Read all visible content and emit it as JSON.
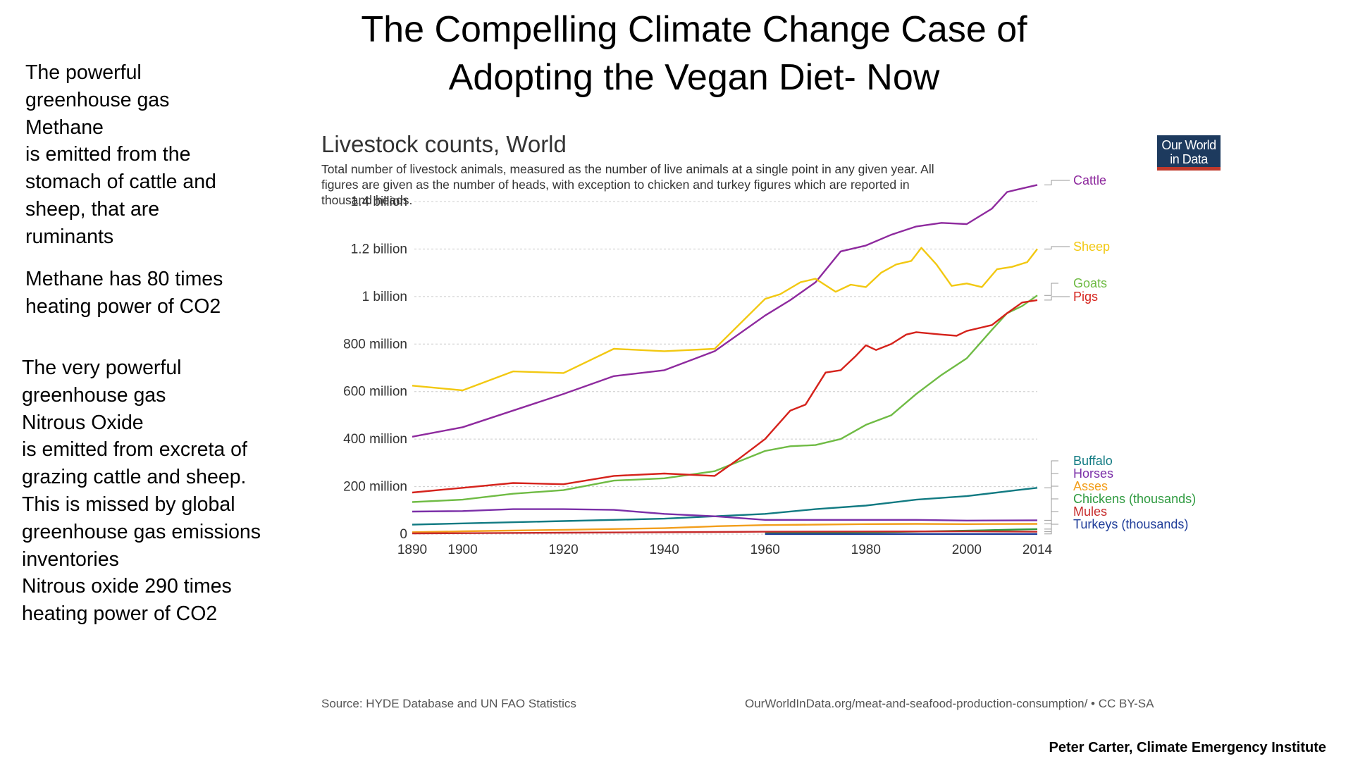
{
  "slide": {
    "title_line1": "The Compelling Climate Change Case of",
    "title_line2": "Adopting the Vegan Diet- Now",
    "methane_note": "The powerful\ngreenhouse gas\nMethane\nis emitted from the\nstomach of cattle and\nsheep, that are\nruminants",
    "methane_power": "Methane has 80 times\nheating  power of CO2",
    "nitrous_note": "The very powerful\ngreenhouse gas\nNitrous Oxide\nis emitted from excreta of\ngrazing cattle and sheep.\nThis is missed by global\ngreenhouse gas emissions\ninventories\nNitrous oxide 290 times\nheating  power of CO2",
    "credit": "Peter Carter, Climate Emergency Institute"
  },
  "logo": {
    "line1": "Our World",
    "line2": "in Data",
    "color": "#1d3a5e",
    "accent": "#c0392b"
  },
  "chart_data": {
    "type": "line",
    "title": "Livestock counts, World",
    "subtitle_lines": [
      "Total number of livestock animals, measured as the number of live animals at a single point in any given year. All",
      "figures are given as the number of heads, with exception to chicken and turkey figures which are reported in",
      "thousand heads."
    ],
    "source": "Source: HYDE Database and UN FAO Statistics",
    "url": "OurWorldInData.org/meat-and-seafood-production-consumption/ • CC BY-SA",
    "xlim": [
      1890,
      2014
    ],
    "ylim": [
      0,
      1500000000
    ],
    "x_ticks": [
      {
        "value": 1890,
        "label": "1890"
      },
      {
        "value": 1900,
        "label": "1900"
      },
      {
        "value": 1920,
        "label": "1920"
      },
      {
        "value": 1940,
        "label": "1940"
      },
      {
        "value": 1960,
        "label": "1960"
      },
      {
        "value": 1980,
        "label": "1980"
      },
      {
        "value": 2000,
        "label": "2000"
      },
      {
        "value": 2014,
        "label": "2014"
      }
    ],
    "y_ticks": [
      {
        "value": 0,
        "label": "0"
      },
      {
        "value": 200000000,
        "label": "200 million"
      },
      {
        "value": 400000000,
        "label": "400 million"
      },
      {
        "value": 600000000,
        "label": "600 million"
      },
      {
        "value": 800000000,
        "label": "800 million"
      },
      {
        "value": 1000000000,
        "label": "1 billion"
      },
      {
        "value": 1200000000,
        "label": "1.2 billion"
      },
      {
        "value": 1400000000,
        "label": "1.4 billion"
      }
    ],
    "grid": true,
    "legend": "right-end labels",
    "series": [
      {
        "name": "Cattle",
        "color": "#8e2a9e",
        "points": [
          [
            1890,
            410000000
          ],
          [
            1900,
            450000000
          ],
          [
            1910,
            520000000
          ],
          [
            1920,
            590000000
          ],
          [
            1930,
            665000000
          ],
          [
            1940,
            690000000
          ],
          [
            1950,
            770000000
          ],
          [
            1960,
            920000000
          ],
          [
            1965,
            985000000
          ],
          [
            1970,
            1060000000
          ],
          [
            1975,
            1190000000
          ],
          [
            1980,
            1215000000
          ],
          [
            1985,
            1260000000
          ],
          [
            1990,
            1295000000
          ],
          [
            1995,
            1310000000
          ],
          [
            2000,
            1305000000
          ],
          [
            2005,
            1370000000
          ],
          [
            2008,
            1440000000
          ],
          [
            2010,
            1450000000
          ],
          [
            2014,
            1470000000
          ]
        ]
      },
      {
        "name": "Sheep",
        "color": "#f2c811",
        "points": [
          [
            1890,
            625000000
          ],
          [
            1900,
            605000000
          ],
          [
            1910,
            685000000
          ],
          [
            1920,
            678000000
          ],
          [
            1930,
            780000000
          ],
          [
            1940,
            770000000
          ],
          [
            1950,
            780000000
          ],
          [
            1960,
            990000000
          ],
          [
            1963,
            1010000000
          ],
          [
            1967,
            1060000000
          ],
          [
            1970,
            1075000000
          ],
          [
            1974,
            1020000000
          ],
          [
            1977,
            1050000000
          ],
          [
            1980,
            1040000000
          ],
          [
            1983,
            1100000000
          ],
          [
            1986,
            1135000000
          ],
          [
            1989,
            1150000000
          ],
          [
            1991,
            1205000000
          ],
          [
            1994,
            1135000000
          ],
          [
            1997,
            1045000000
          ],
          [
            2000,
            1055000000
          ],
          [
            2003,
            1040000000
          ],
          [
            2006,
            1115000000
          ],
          [
            2009,
            1125000000
          ],
          [
            2012,
            1145000000
          ],
          [
            2014,
            1200000000
          ]
        ]
      },
      {
        "name": "Goats",
        "color": "#6fbb44",
        "points": [
          [
            1890,
            135000000
          ],
          [
            1900,
            145000000
          ],
          [
            1910,
            170000000
          ],
          [
            1920,
            185000000
          ],
          [
            1930,
            225000000
          ],
          [
            1940,
            235000000
          ],
          [
            1950,
            265000000
          ],
          [
            1960,
            350000000
          ],
          [
            1965,
            370000000
          ],
          [
            1970,
            375000000
          ],
          [
            1975,
            400000000
          ],
          [
            1980,
            460000000
          ],
          [
            1985,
            500000000
          ],
          [
            1990,
            590000000
          ],
          [
            1995,
            670000000
          ],
          [
            2000,
            740000000
          ],
          [
            2005,
            860000000
          ],
          [
            2008,
            930000000
          ],
          [
            2011,
            960000000
          ],
          [
            2014,
            1005000000
          ]
        ]
      },
      {
        "name": "Pigs",
        "color": "#d5221b",
        "points": [
          [
            1890,
            175000000
          ],
          [
            1900,
            195000000
          ],
          [
            1910,
            215000000
          ],
          [
            1920,
            210000000
          ],
          [
            1930,
            245000000
          ],
          [
            1940,
            255000000
          ],
          [
            1950,
            245000000
          ],
          [
            1955,
            320000000
          ],
          [
            1960,
            400000000
          ],
          [
            1965,
            520000000
          ],
          [
            1968,
            545000000
          ],
          [
            1972,
            680000000
          ],
          [
            1975,
            690000000
          ],
          [
            1978,
            750000000
          ],
          [
            1980,
            795000000
          ],
          [
            1982,
            775000000
          ],
          [
            1985,
            800000000
          ],
          [
            1988,
            840000000
          ],
          [
            1990,
            850000000
          ],
          [
            1995,
            840000000
          ],
          [
            1998,
            835000000
          ],
          [
            2000,
            855000000
          ],
          [
            2005,
            880000000
          ],
          [
            2008,
            930000000
          ],
          [
            2011,
            975000000
          ],
          [
            2014,
            985000000
          ]
        ]
      },
      {
        "name": "Buffalo",
        "color": "#117a82",
        "points": [
          [
            1890,
            40000000
          ],
          [
            1900,
            45000000
          ],
          [
            1920,
            55000000
          ],
          [
            1940,
            65000000
          ],
          [
            1950,
            75000000
          ],
          [
            1960,
            85000000
          ],
          [
            1970,
            105000000
          ],
          [
            1980,
            120000000
          ],
          [
            1990,
            145000000
          ],
          [
            2000,
            160000000
          ],
          [
            2010,
            185000000
          ],
          [
            2014,
            195000000
          ]
        ]
      },
      {
        "name": "Horses",
        "color": "#7b2fa8",
        "points": [
          [
            1890,
            95000000
          ],
          [
            1900,
            97000000
          ],
          [
            1910,
            105000000
          ],
          [
            1920,
            105000000
          ],
          [
            1930,
            102000000
          ],
          [
            1940,
            85000000
          ],
          [
            1950,
            75000000
          ],
          [
            1960,
            60000000
          ],
          [
            1970,
            60000000
          ],
          [
            1980,
            60000000
          ],
          [
            1990,
            60000000
          ],
          [
            2000,
            57000000
          ],
          [
            2014,
            58000000
          ]
        ]
      },
      {
        "name": "Asses",
        "color": "#f29e1b",
        "points": [
          [
            1890,
            8000000
          ],
          [
            1900,
            12000000
          ],
          [
            1920,
            18000000
          ],
          [
            1940,
            25000000
          ],
          [
            1950,
            33000000
          ],
          [
            1960,
            38000000
          ],
          [
            1970,
            40000000
          ],
          [
            1980,
            42000000
          ],
          [
            1990,
            43000000
          ],
          [
            2000,
            42000000
          ],
          [
            2014,
            43000000
          ]
        ]
      },
      {
        "name": "Chickens (thousands)",
        "color": "#2e9a3f",
        "points": [
          [
            1960,
            3800000
          ],
          [
            1970,
            5200000
          ],
          [
            1980,
            7200000
          ],
          [
            1990,
            10700000
          ],
          [
            2000,
            14400000
          ],
          [
            2010,
            19400000
          ],
          [
            2014,
            21000000
          ]
        ]
      },
      {
        "name": "Mules",
        "color": "#c62a2a",
        "points": [
          [
            1890,
            3000000
          ],
          [
            1920,
            6000000
          ],
          [
            1950,
            9000000
          ],
          [
            1960,
            10000000
          ],
          [
            1980,
            11000000
          ],
          [
            2000,
            11500000
          ],
          [
            2014,
            10000000
          ]
        ]
      },
      {
        "name": "Turkeys (thousands)",
        "color": "#1f3d99",
        "points": [
          [
            1960,
            150000
          ],
          [
            1980,
            250000
          ],
          [
            2000,
            450000
          ],
          [
            2014,
            460000
          ]
        ]
      }
    ]
  }
}
